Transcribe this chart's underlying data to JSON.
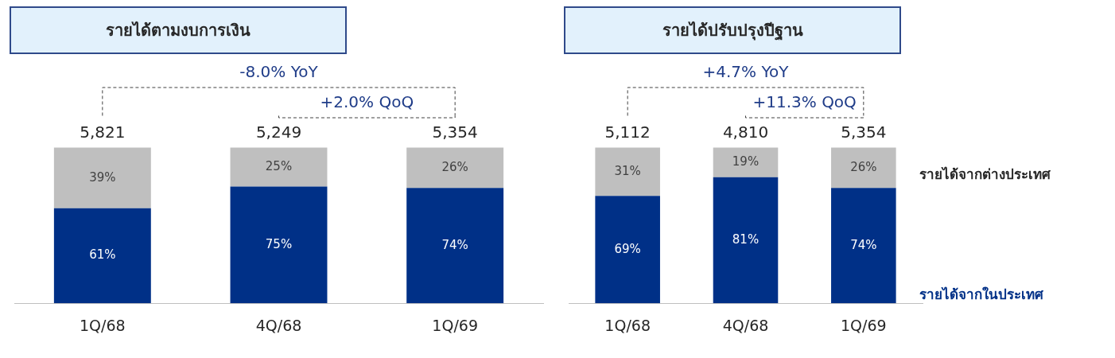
{
  "chart_data": [
    {
      "type": "bar",
      "title": "รายได้ตามงบการเงิน",
      "categories": [
        "1Q/68",
        "4Q/68",
        "1Q/69"
      ],
      "stacked": true,
      "legend": false,
      "series": [
        {
          "color": "#003087",
          "values": [
            61,
            75,
            74
          ],
          "value_labels": [
            "61%",
            "75%",
            "74%"
          ]
        },
        {
          "color": "#bfbfbf",
          "values": [
            39,
            25,
            26
          ],
          "value_labels": [
            "39%",
            "25%",
            "26%"
          ]
        }
      ],
      "annotations": [
        "-8.0% YoY",
        "+2.0% QoQ",
        {
          "text": "5,821",
          "x": "1Q/68",
          "y": 100
        },
        {
          "text": "5,249",
          "x": "4Q/68",
          "y": 100
        },
        {
          "text": "5,354",
          "x": "1Q/69",
          "y": 100
        }
      ]
    },
    {
      "type": "bar",
      "title": "รายได้ปรับปรุงปีฐาน",
      "categories": [
        "1Q/68",
        "4Q/68",
        "1Q/69"
      ],
      "stacked": true,
      "legend": "right",
      "series": [
        {
          "name": "รายได้จากในประเทศ",
          "color": "#003087",
          "values": [
            69,
            81,
            74
          ],
          "value_labels": [
            "69%",
            "81%",
            "74%"
          ]
        },
        {
          "name": "รายได้จากต่างประเทศ",
          "color": "#bfbfbf",
          "values": [
            31,
            19,
            26
          ],
          "value_labels": [
            "31%",
            "19%",
            "26%"
          ]
        }
      ],
      "annotations": [
        "+4.7% YoY",
        "+11.3% QoQ",
        {
          "text": "5,112",
          "x": "1Q/68",
          "y": 100
        },
        {
          "text": "4,810",
          "x": "4Q/68",
          "y": 100
        },
        {
          "text": "5,354",
          "x": "1Q/69",
          "y": 100
        }
      ]
    }
  ]
}
